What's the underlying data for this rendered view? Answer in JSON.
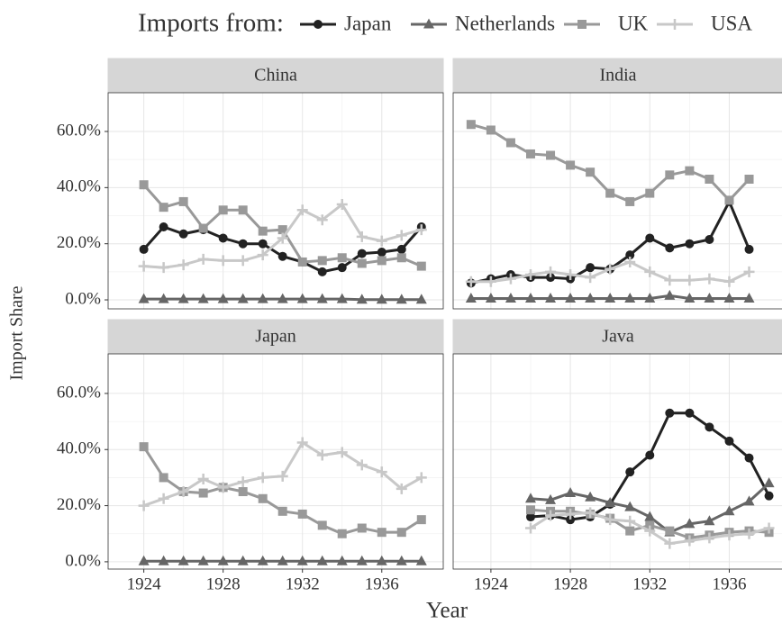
{
  "legend_title": "Imports from:",
  "xlabel": "Year",
  "ylabel": "Import Share",
  "chart_data": [
    {
      "type": "line",
      "title": "China",
      "x": [
        1924,
        1925,
        1926,
        1927,
        1928,
        1929,
        1930,
        1931,
        1932,
        1933,
        1934,
        1935,
        1936,
        1937,
        1938
      ],
      "xlim": [
        1922.2,
        1939.1
      ],
      "ylim": [
        -3.2,
        73.8
      ],
      "xticks": [
        1924,
        1928,
        1932,
        1936
      ],
      "yticks": [
        {
          "value": 0,
          "label": "0.0%"
        },
        {
          "value": 20,
          "label": "20.0%"
        },
        {
          "value": 40,
          "label": "40.0%"
        },
        {
          "value": 60,
          "label": "60.0%"
        }
      ],
      "grid": true,
      "series": [
        {
          "name": "Japan",
          "color": "#222222",
          "marker": "circle",
          "values": [
            18,
            26,
            23.5,
            25,
            22,
            20,
            20,
            15.5,
            13.5,
            10,
            11.5,
            16.5,
            17,
            18,
            26
          ]
        },
        {
          "name": "Netherlands",
          "color": "#666666",
          "marker": "triangle",
          "values": [
            0.3,
            0.3,
            0.3,
            0.3,
            0.3,
            0.3,
            0.3,
            0.3,
            0.3,
            0.3,
            0.3,
            0.1,
            0.1,
            0.1,
            0.1
          ]
        },
        {
          "name": "UK",
          "color": "#999999",
          "marker": "square",
          "values": [
            41,
            33,
            35,
            25.5,
            32,
            32,
            24.5,
            25,
            13.5,
            14,
            15,
            13,
            14,
            15,
            12
          ]
        },
        {
          "name": "USA",
          "color": "#c8c8c8",
          "marker": "plus",
          "values": [
            12,
            11.5,
            12.5,
            14.5,
            14,
            14,
            16,
            22,
            32,
            28.5,
            34,
            22.5,
            21,
            23,
            25
          ]
        }
      ]
    },
    {
      "type": "line",
      "title": "India",
      "x": [
        1923,
        1924,
        1925,
        1926,
        1927,
        1928,
        1929,
        1930,
        1931,
        1932,
        1933,
        1934,
        1935,
        1936,
        1937
      ],
      "xlim": [
        1922.1,
        1938.7
      ],
      "ylim": [
        -3.2,
        73.8
      ],
      "xticks": [
        1924,
        1928,
        1932,
        1936
      ],
      "yticks": [
        0,
        20,
        40,
        60
      ],
      "grid": true,
      "series": [
        {
          "name": "Japan",
          "color": "#222222",
          "marker": "circle",
          "values": [
            6,
            7.5,
            9,
            8,
            8,
            7.5,
            11.5,
            11,
            16,
            22,
            18.5,
            20,
            21.5,
            35,
            18
          ]
        },
        {
          "name": "Netherlands",
          "color": "#666666",
          "marker": "triangle",
          "values": [
            0.5,
            0.5,
            0.5,
            0.5,
            0.5,
            0.5,
            0.5,
            0.5,
            0.5,
            0.5,
            1.5,
            0.5,
            0.5,
            0.5,
            0.5
          ]
        },
        {
          "name": "UK",
          "color": "#999999",
          "marker": "square",
          "values": [
            62.5,
            60.5,
            56,
            52,
            51.5,
            48,
            45.5,
            38,
            35,
            38,
            44.5,
            46,
            43,
            35.5,
            43
          ]
        },
        {
          "name": "USA",
          "color": "#c8c8c8",
          "marker": "plus",
          "values": [
            6.5,
            6.5,
            7.5,
            9,
            10,
            9,
            8,
            11,
            13.5,
            10,
            7,
            7,
            7.5,
            6.5,
            10
          ]
        }
      ]
    },
    {
      "type": "line",
      "title": "Japan",
      "x": [
        1924,
        1925,
        1926,
        1927,
        1928,
        1929,
        1930,
        1931,
        1932,
        1933,
        1934,
        1935,
        1936,
        1937,
        1938
      ],
      "xlim": [
        1922.2,
        1939.1
      ],
      "ylim": [
        -2.6,
        74.1
      ],
      "xticks": [
        1924,
        1928,
        1932,
        1936
      ],
      "yticks": [
        {
          "value": 0,
          "label": "0.0%"
        },
        {
          "value": 20,
          "label": "20.0%"
        },
        {
          "value": 40,
          "label": "40.0%"
        },
        {
          "value": 60,
          "label": "60.0%"
        }
      ],
      "grid": true,
      "series": [
        {
          "name": "Netherlands",
          "color": "#666666",
          "marker": "triangle",
          "values": [
            0.2,
            0.2,
            0.2,
            0.2,
            0.2,
            0.2,
            0.2,
            0.2,
            0.2,
            0.2,
            0.2,
            0.2,
            0.2,
            0.2,
            0.2
          ]
        },
        {
          "name": "UK",
          "color": "#999999",
          "marker": "square",
          "values": [
            41,
            30,
            25,
            24.5,
            26.5,
            25,
            22.5,
            18,
            17,
            13,
            10,
            12,
            10.5,
            10.5,
            15
          ]
        },
        {
          "name": "USA",
          "color": "#c8c8c8",
          "marker": "plus",
          "values": [
            20,
            22.5,
            25,
            29.5,
            26.5,
            28.5,
            30,
            30.5,
            42.5,
            38,
            39,
            34.5,
            32,
            26,
            30
          ]
        }
      ]
    },
    {
      "type": "line",
      "title": "Java",
      "x": [
        1926,
        1927,
        1928,
        1929,
        1930,
        1931,
        1932,
        1933,
        1934,
        1935,
        1936,
        1937,
        1938
      ],
      "xlim": [
        1922.1,
        1938.7
      ],
      "ylim": [
        -2.6,
        74.1
      ],
      "xticks": [
        1924,
        1928,
        1932,
        1936
      ],
      "yticks": [
        0,
        20,
        40,
        60
      ],
      "grid": true,
      "series": [
        {
          "name": "Japan",
          "color": "#222222",
          "marker": "circle",
          "values": [
            16,
            16.5,
            15,
            16,
            20.5,
            32,
            38,
            53,
            53,
            48,
            43,
            37,
            23.5
          ]
        },
        {
          "name": "Netherlands",
          "color": "#666666",
          "marker": "triangle",
          "values": [
            22.5,
            22,
            24.5,
            23,
            21,
            19.5,
            16,
            10.5,
            13.5,
            14.5,
            18,
            21.5,
            28
          ]
        },
        {
          "name": "UK",
          "color": "#999999",
          "marker": "square",
          "values": [
            18.5,
            18,
            18,
            17,
            15.5,
            11,
            13,
            11,
            8.5,
            9.5,
            10.5,
            11,
            10.5
          ]
        },
        {
          "name": "USA",
          "color": "#c8c8c8",
          "marker": "plus",
          "values": [
            12,
            16.5,
            17,
            17.5,
            15,
            14.5,
            11,
            6.5,
            7.5,
            8.5,
            9.5,
            10,
            12
          ]
        }
      ]
    }
  ]
}
